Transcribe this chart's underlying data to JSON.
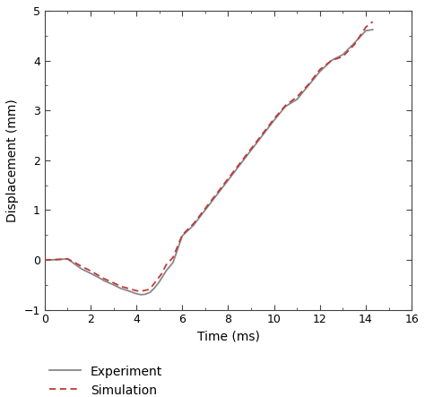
{
  "title": "",
  "xlabel": "Time (ms)",
  "ylabel": "Displacement (mm)",
  "xlim": [
    0,
    16
  ],
  "ylim": [
    -1,
    5
  ],
  "xticks": [
    0,
    2,
    4,
    6,
    8,
    10,
    12,
    14,
    16
  ],
  "yticks": [
    -1,
    0,
    1,
    2,
    3,
    4,
    5
  ],
  "experiment_color": "#888888",
  "simulation_color": "#c0393a",
  "experiment_label": "Experiment",
  "simulation_label": "Simulation",
  "experiment_x": [
    0,
    0.3,
    0.7,
    1.0,
    1.3,
    1.6,
    2.0,
    2.3,
    2.6,
    3.0,
    3.3,
    3.7,
    4.0,
    4.2,
    4.4,
    4.6,
    4.8,
    5.0,
    5.3,
    5.6,
    6.0,
    6.5,
    7.0,
    7.5,
    8.0,
    8.5,
    9.0,
    9.5,
    10.0,
    10.5,
    11.0,
    11.5,
    12.0,
    12.5,
    13.0,
    13.5,
    14.0,
    14.3
  ],
  "experiment_y": [
    0.0,
    0.0,
    0.01,
    0.02,
    -0.08,
    -0.18,
    -0.27,
    -0.34,
    -0.42,
    -0.5,
    -0.57,
    -0.63,
    -0.68,
    -0.7,
    -0.69,
    -0.65,
    -0.56,
    -0.44,
    -0.22,
    -0.05,
    0.48,
    0.7,
    1.0,
    1.3,
    1.6,
    1.9,
    2.2,
    2.5,
    2.8,
    3.08,
    3.22,
    3.5,
    3.78,
    4.0,
    4.12,
    4.35,
    4.6,
    4.62
  ],
  "simulation_x": [
    0,
    0.3,
    0.7,
    1.0,
    1.3,
    1.6,
    2.0,
    2.3,
    2.6,
    3.0,
    3.3,
    3.7,
    4.0,
    4.2,
    4.5,
    4.7,
    4.9,
    5.1,
    5.3,
    5.6,
    6.0,
    6.5,
    7.0,
    7.5,
    8.0,
    8.5,
    9.0,
    9.5,
    10.0,
    10.5,
    11.0,
    11.5,
    12.0,
    12.5,
    13.0,
    13.5,
    14.0,
    14.3
  ],
  "simulation_y": [
    0.0,
    0.0,
    0.01,
    0.02,
    -0.05,
    -0.13,
    -0.22,
    -0.3,
    -0.38,
    -0.46,
    -0.53,
    -0.58,
    -0.62,
    -0.63,
    -0.6,
    -0.52,
    -0.4,
    -0.28,
    -0.1,
    0.05,
    0.5,
    0.73,
    1.03,
    1.33,
    1.63,
    1.93,
    2.23,
    2.53,
    2.83,
    3.1,
    3.27,
    3.52,
    3.82,
    4.0,
    4.08,
    4.32,
    4.67,
    4.78
  ]
}
